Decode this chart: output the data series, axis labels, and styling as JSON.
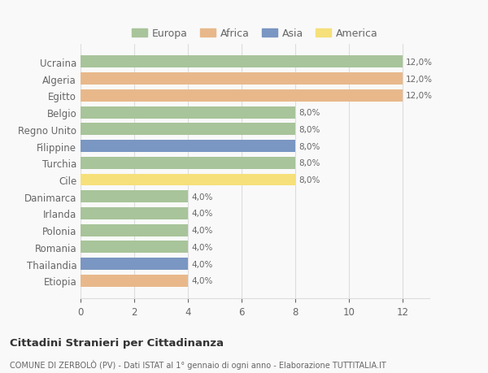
{
  "countries": [
    "Ucraina",
    "Algeria",
    "Egitto",
    "Belgio",
    "Regno Unito",
    "Filippine",
    "Turchia",
    "Cile",
    "Danimarca",
    "Irlanda",
    "Polonia",
    "Romania",
    "Thailandia",
    "Etiopia"
  ],
  "values": [
    12,
    12,
    12,
    8,
    8,
    8,
    8,
    8,
    4,
    4,
    4,
    4,
    4,
    4
  ],
  "percentages": [
    "12,0%",
    "12,0%",
    "12,0%",
    "8,0%",
    "8,0%",
    "8,0%",
    "8,0%",
    "8,0%",
    "4,0%",
    "4,0%",
    "4,0%",
    "4,0%",
    "4,0%",
    "4,0%"
  ],
  "continents": [
    "Europa",
    "Africa",
    "Africa",
    "Europa",
    "Europa",
    "Asia",
    "Europa",
    "America",
    "Europa",
    "Europa",
    "Europa",
    "Europa",
    "Asia",
    "Africa"
  ],
  "colors": {
    "Europa": "#a8c49a",
    "Africa": "#e8b88a",
    "Asia": "#7a96c2",
    "America": "#f5e07a"
  },
  "legend_order": [
    "Europa",
    "Africa",
    "Asia",
    "America"
  ],
  "xlim": [
    0,
    13
  ],
  "xticks": [
    0,
    2,
    4,
    6,
    8,
    10,
    12
  ],
  "title": "Cittadini Stranieri per Cittadinanza",
  "subtitle": "COMUNE DI ZERBOLÒ (PV) - Dati ISTAT al 1° gennaio di ogni anno - Elaborazione TUTTITALIA.IT",
  "bg_color": "#f9f9f9",
  "grid_color": "#dddddd",
  "label_color": "#666666",
  "bar_height": 0.72
}
